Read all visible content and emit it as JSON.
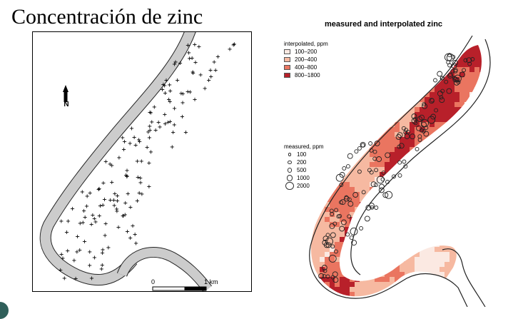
{
  "slide": {
    "title": "Concentración de zinc"
  },
  "left_map": {
    "north_label": "N",
    "north_icon": "north-arrow-icon",
    "scale_start": "0",
    "scale_end": "1 km",
    "river_color": "#cccccc",
    "sample_marker": "+"
  },
  "right_map": {
    "title": "measured and interpolated zinc",
    "interpolated_legend": {
      "title": "interpolated, ppm",
      "classes": [
        {
          "label": "100–200",
          "color": "#fbe9e2"
        },
        {
          "label": "200–400",
          "color": "#f6b9a1"
        },
        {
          "label": "400–800",
          "color": "#ea7560"
        },
        {
          "label": "800–1800",
          "color": "#b8202a"
        }
      ]
    },
    "measured_legend": {
      "title": "measured, ppm",
      "items": [
        {
          "label": "100",
          "value": 100
        },
        {
          "label": "200",
          "value": 200
        },
        {
          "label": "500",
          "value": 500
        },
        {
          "label": "1000",
          "value": 1000
        },
        {
          "label": "2000",
          "value": 2000
        }
      ]
    }
  }
}
